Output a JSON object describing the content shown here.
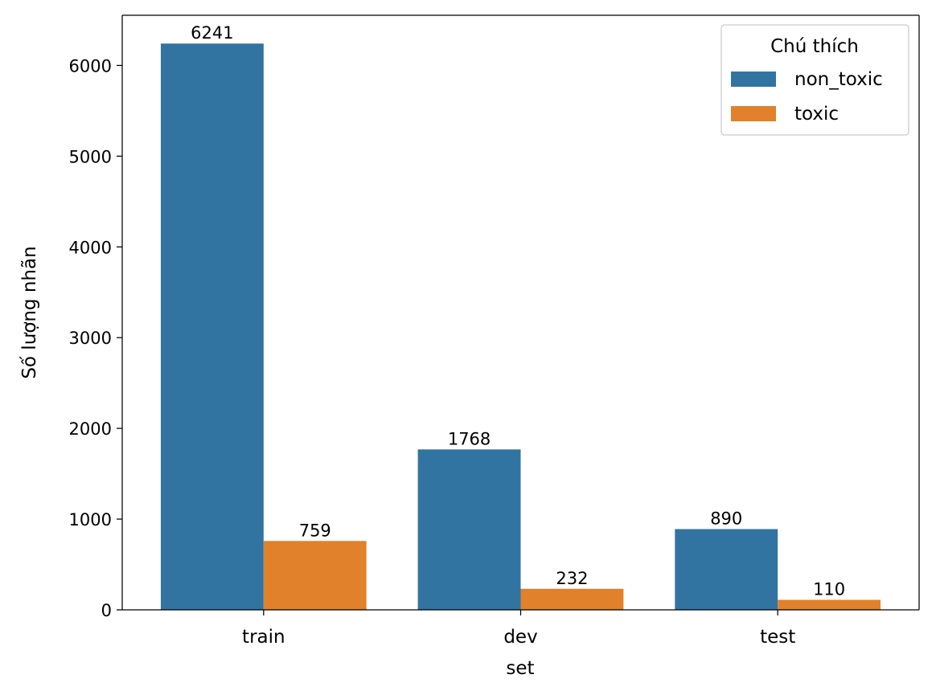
{
  "chart_data": {
    "type": "bar",
    "categories": [
      "train",
      "dev",
      "test"
    ],
    "series": [
      {
        "name": "non_toxic",
        "values": [
          6241,
          1768,
          890
        ],
        "labels": [
          "6241",
          "1768",
          "890"
        ],
        "color": "#3274a1"
      },
      {
        "name": "toxic",
        "values": [
          759,
          232,
          110
        ],
        "labels": [
          "759",
          "232",
          "110"
        ],
        "color": "#e1812c"
      }
    ],
    "xlabel": "set",
    "ylabel": "Số lượng nhãn",
    "ylim": [
      0,
      6553
    ],
    "yticks": [
      0,
      1000,
      2000,
      3000,
      4000,
      5000,
      6000
    ],
    "ytick_labels": [
      "0",
      "1000",
      "2000",
      "3000",
      "4000",
      "5000",
      "6000"
    ],
    "grid": false,
    "legend": {
      "title": "Chú thích",
      "position": "top-right"
    }
  }
}
